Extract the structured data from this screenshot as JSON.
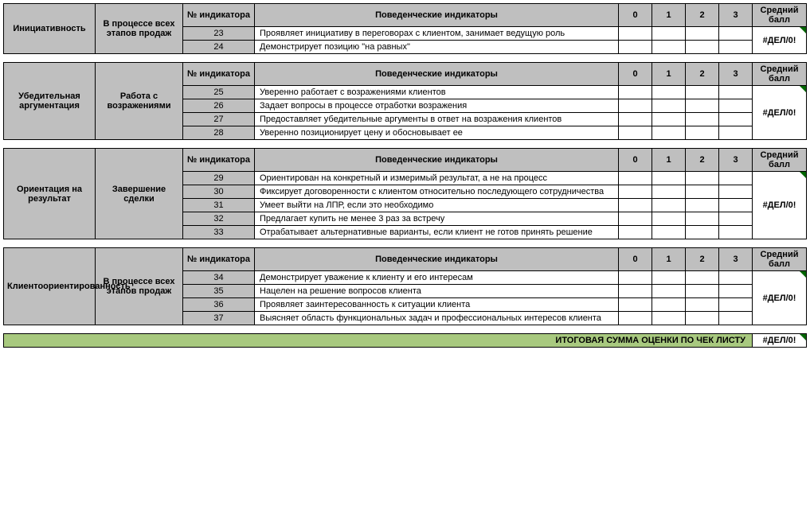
{
  "headers": {
    "num": "№ индикатора",
    "indic": "Поведенческие индикаторы",
    "s0": "0",
    "s1": "1",
    "s2": "2",
    "s3": "3",
    "avg": "Средний балл"
  },
  "err": "#ДЕЛ/0!",
  "sections": [
    {
      "competency": "Инициативность",
      "stage": "В процессе всех этапов продаж",
      "rows": [
        {
          "num": "23",
          "txt": "Проявляет инициативу в переговорах с клиентом, занимает ведущую роль"
        },
        {
          "num": "24",
          "txt": "Демонстрирует позицию \"на равных\""
        }
      ]
    },
    {
      "competency": "Убедительная аргументация",
      "stage": "Работа с возражениями",
      "rows": [
        {
          "num": "25",
          "txt": "Уверенно работает с возражениями клиентов"
        },
        {
          "num": "26",
          "txt": "Задает вопросы в процессе отработки возражения"
        },
        {
          "num": "27",
          "txt": "Предоставляет убедительные аргументы в ответ на возражения клиентов"
        },
        {
          "num": "28",
          "txt": "Уверенно позиционирует цену и обосновывает ее"
        }
      ]
    },
    {
      "competency": "Ориентация на результат",
      "stage": "Завершение сделки",
      "rows": [
        {
          "num": "29",
          "txt": "Ориентирован на конкретный и измеримый результат, а не на процесс"
        },
        {
          "num": "30",
          "txt": "Фиксирует договоренности с клиентом относительно последующего сотрудничества"
        },
        {
          "num": "31",
          "txt": "Умеет выйти на ЛПР, если это необходимо"
        },
        {
          "num": "32",
          "txt": "Предлагает купить не менее 3 раз за встречу"
        },
        {
          "num": "33",
          "txt": "Отрабатывает альтернативные варианты, если клиент не готов принять решение"
        }
      ]
    },
    {
      "competency": "Клиентоориентированность",
      "stage": "В процессе всех этапов продаж",
      "rows": [
        {
          "num": "34",
          "txt": "Демонстрирует уважение к клиенту и его интересам"
        },
        {
          "num": "35",
          "txt": "Нацелен на решение вопросов клиента"
        },
        {
          "num": "36",
          "txt": "Проявляет заинтересованность к ситуации клиента"
        },
        {
          "num": "37",
          "txt": "Выясняет область функциональных задач и профессиональных интересов клиента"
        }
      ]
    }
  ],
  "footer": "ИТОГОВАЯ СУММА ОЦЕНКИ ПО ЧЕК ЛИСТУ"
}
